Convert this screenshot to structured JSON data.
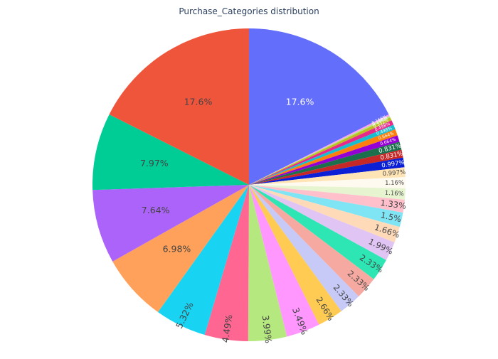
{
  "chart_data": {
    "type": "pie",
    "title": "Purchase_Categories distribution",
    "direction": "clockwise",
    "start_angle_deg": 0,
    "slices": [
      {
        "value": 17.6,
        "label": "17.6%",
        "color": "#636efa",
        "label_color": "#ffffff"
      },
      {
        "value": 0.166,
        "label": "0.166%",
        "color": "#ff97ff",
        "label_color": "#ffffff"
      },
      {
        "value": 0.166,
        "label": "0.166%",
        "color": "#b6e880",
        "label_color": "#ffffff"
      },
      {
        "value": 0.332,
        "label": "0.332%",
        "color": "#bcbd22",
        "label_color": "#ffffff"
      },
      {
        "value": 0.498,
        "label": "0.498%",
        "color": "#e7298a",
        "label_color": "#ffffff"
      },
      {
        "value": 0.498,
        "label": "0.498%",
        "color": "#17becf",
        "label_color": "#ffffff"
      },
      {
        "value": 0.664,
        "label": "0.664%",
        "color": "#ff7f0e",
        "label_color": "#ffffff"
      },
      {
        "value": 0.664,
        "label": "0.664%",
        "color": "#9400d3",
        "label_color": "#ffffff"
      },
      {
        "value": 0.831,
        "label": "0.831%",
        "color": "#1b6f4d",
        "label_color": "#ffffff"
      },
      {
        "value": 0.831,
        "label": "0.831%",
        "color": "#c62828",
        "label_color": "#ffffff"
      },
      {
        "value": 0.997,
        "label": "0.997%",
        "color": "#0a1fd6",
        "label_color": "#ffffff"
      },
      {
        "value": 0.997,
        "label": "0.997%",
        "color": "#ffe4b5",
        "label_color": "#444444"
      },
      {
        "value": 1.16,
        "label": "1.16%",
        "color": "#fffaf0",
        "label_color": "#444444"
      },
      {
        "value": 1.16,
        "label": "1.16%",
        "color": "#e6f5d0",
        "label_color": "#444444"
      },
      {
        "value": 1.33,
        "label": "1.33%",
        "color": "#ffc0cb",
        "label_color": "#444444"
      },
      {
        "value": 1.5,
        "label": "1.5%",
        "color": "#7fe4f4",
        "label_color": "#444444"
      },
      {
        "value": 1.66,
        "label": "1.66%",
        "color": "#ffdab9",
        "label_color": "#444444"
      },
      {
        "value": 1.99,
        "label": "1.99%",
        "color": "#e0c4f4",
        "label_color": "#444444"
      },
      {
        "value": 2.33,
        "label": "2.33%",
        "color": "#2de6b3",
        "label_color": "#444444"
      },
      {
        "value": 2.33,
        "label": "2.33%",
        "color": "#f5a9a0",
        "label_color": "#444444"
      },
      {
        "value": 2.33,
        "label": "2.33%",
        "color": "#c7c9f6",
        "label_color": "#444444"
      },
      {
        "value": 2.66,
        "label": "2.66%",
        "color": "#ffcb52",
        "label_color": "#444444"
      },
      {
        "value": 3.49,
        "label": "3.49%",
        "color": "#ff97ff",
        "label_color": "#444444"
      },
      {
        "value": 3.99,
        "label": "3.99%",
        "color": "#b6e880",
        "label_color": "#444444"
      },
      {
        "value": 4.49,
        "label": "4.49%",
        "color": "#ff6692",
        "label_color": "#444444"
      },
      {
        "value": 5.32,
        "label": "5.32%",
        "color": "#19d3f3",
        "label_color": "#444444"
      },
      {
        "value": 6.98,
        "label": "6.98%",
        "color": "#ffa15a",
        "label_color": "#444444"
      },
      {
        "value": 7.64,
        "label": "7.64%",
        "color": "#ab63fa",
        "label_color": "#444444"
      },
      {
        "value": 7.97,
        "label": "7.97%",
        "color": "#00cc96",
        "label_color": "#444444"
      },
      {
        "value": 17.6,
        "label": "17.6%",
        "color": "#ef553b",
        "label_color": "#444444"
      }
    ]
  }
}
